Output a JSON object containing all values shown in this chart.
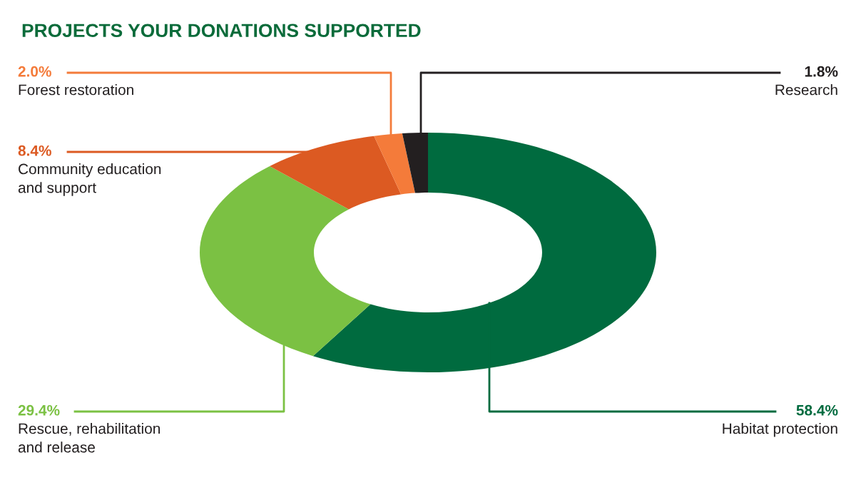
{
  "chart_data": {
    "type": "donut",
    "title": "PROJECTS YOUR DONATIONS SUPPORTED",
    "categories": [
      "Habitat protection",
      "Rescue, rehabilitation\nand release",
      "Community education\nand support",
      "Forest restoration",
      "Research"
    ],
    "values": [
      58.4,
      29.4,
      8.4,
      2.0,
      1.8
    ],
    "colors": [
      "#006b3f",
      "#7bc143",
      "#dc5a22",
      "#f47b3a",
      "#231f20"
    ],
    "value_labels": [
      "58.4%",
      "29.4%",
      "8.4%",
      "2.0%",
      "1.8%"
    ]
  }
}
